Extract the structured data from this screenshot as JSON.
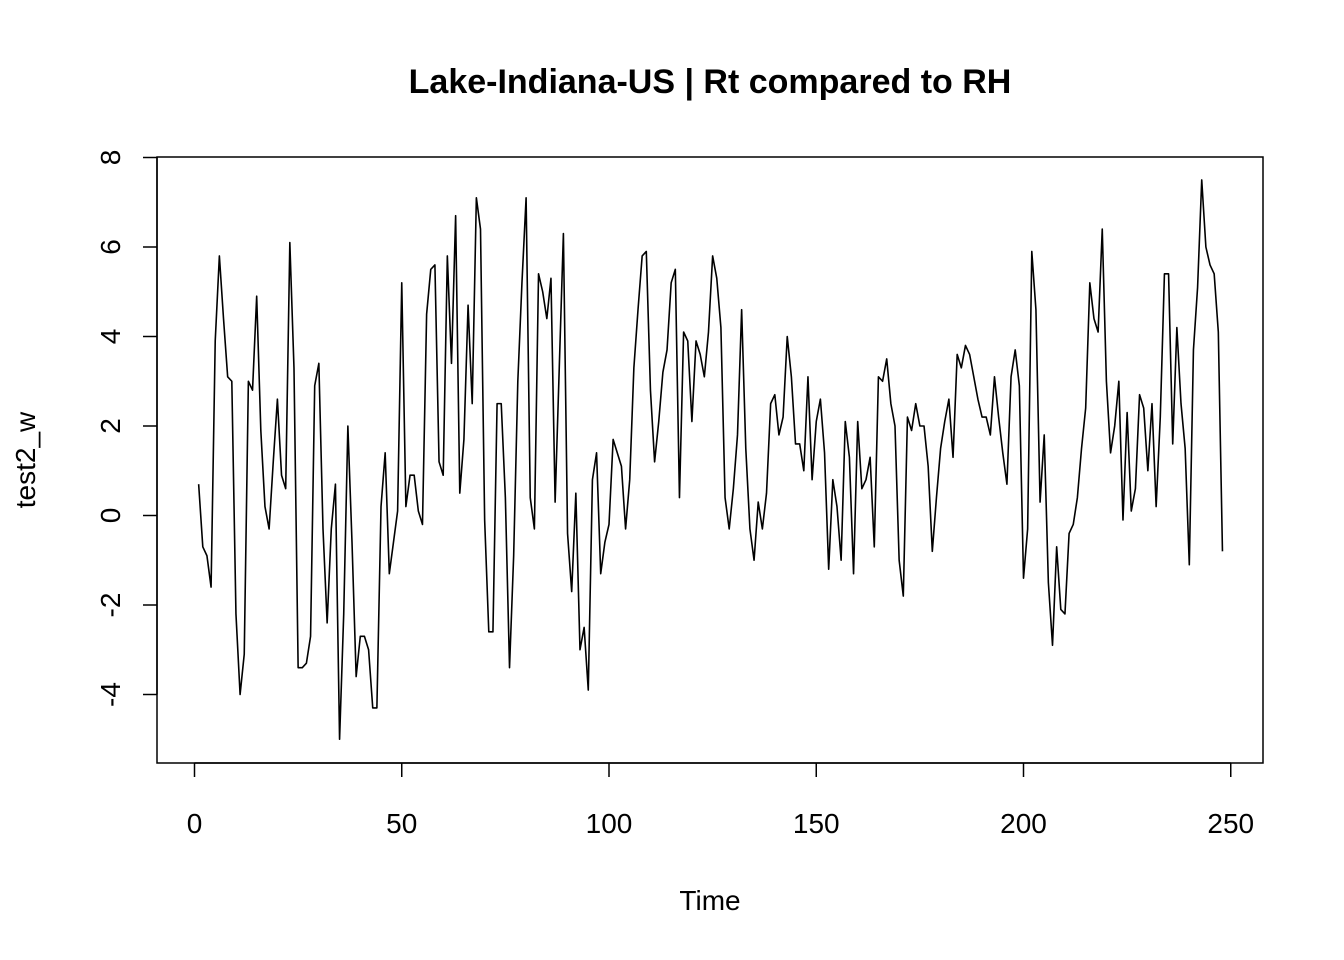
{
  "chart_data": {
    "type": "line",
    "title": "Lake-Indiana-US | Rt compared to RH",
    "xlabel": "Time",
    "ylabel": "test2_w",
    "xlim": [
      0,
      250
    ],
    "ylim": [
      -5,
      8
    ],
    "x_ticks": [
      0,
      50,
      100,
      150,
      200,
      250
    ],
    "y_ticks": [
      -4,
      -2,
      0,
      2,
      4,
      6,
      8
    ],
    "grid": false,
    "series": [
      {
        "color": "#000000",
        "x_start": 1,
        "values": [
          0.7,
          -0.7,
          -0.9,
          -1.6,
          3.9,
          5.8,
          4.4,
          3.1,
          3.0,
          -2.2,
          -4.0,
          -3.1,
          3.0,
          2.8,
          4.9,
          1.9,
          0.2,
          -0.3,
          1.2,
          2.6,
          0.9,
          0.6,
          6.1,
          3.3,
          -3.4,
          -3.4,
          -3.3,
          -2.7,
          2.9,
          3.4,
          -0.3,
          -2.4,
          -0.3,
          0.7,
          -5.0,
          -2.2,
          2.0,
          -0.6,
          -3.6,
          -2.7,
          -2.7,
          -3.0,
          -4.3,
          -4.3,
          0.2,
          1.4,
          -1.3,
          -0.6,
          0.1,
          5.2,
          0.2,
          0.9,
          0.9,
          0.1,
          -0.2,
          4.5,
          5.5,
          5.6,
          1.2,
          0.9,
          5.8,
          3.4,
          6.7,
          0.5,
          1.7,
          4.7,
          2.5,
          7.1,
          6.4,
          -0.1,
          -2.6,
          -2.6,
          2.5,
          2.5,
          0.4,
          -3.4,
          -0.9,
          3.0,
          5.2,
          7.1,
          0.4,
          -0.3,
          5.4,
          5.0,
          4.4,
          5.3,
          0.3,
          3.3,
          6.3,
          -0.4,
          -1.7,
          0.5,
          -3.0,
          -2.5,
          -3.9,
          0.8,
          1.4,
          -1.3,
          -0.6,
          -0.2,
          1.7,
          1.4,
          1.1,
          -0.3,
          0.8,
          3.3,
          4.6,
          5.8,
          5.9,
          2.8,
          1.2,
          2.1,
          3.2,
          3.7,
          5.2,
          5.5,
          0.4,
          4.1,
          3.9,
          2.1,
          3.9,
          3.6,
          3.1,
          4.1,
          5.8,
          5.3,
          4.2,
          0.4,
          -0.3,
          0.6,
          1.8,
          4.6,
          1.5,
          -0.3,
          -1.0,
          0.3,
          -0.3,
          0.5,
          2.5,
          2.7,
          1.8,
          2.2,
          4.0,
          3.1,
          1.6,
          1.6,
          1.0,
          3.1,
          0.8,
          2.1,
          2.6,
          1.4,
          -1.2,
          0.8,
          0.2,
          -1.0,
          2.1,
          1.3,
          -1.3,
          2.1,
          0.6,
          0.8,
          1.3,
          -0.7,
          3.1,
          3.0,
          3.5,
          2.5,
          2.0,
          -1.0,
          -1.8,
          2.2,
          1.9,
          2.5,
          2.0,
          2.0,
          1.1,
          -0.8,
          0.4,
          1.5,
          2.1,
          2.6,
          1.3,
          3.6,
          3.3,
          3.8,
          3.6,
          3.1,
          2.6,
          2.2,
          2.2,
          1.8,
          3.1,
          2.2,
          1.4,
          0.7,
          3.1,
          3.7,
          2.9,
          -1.4,
          -0.3,
          5.9,
          4.6,
          0.3,
          1.8,
          -1.5,
          -2.9,
          -0.7,
          -2.1,
          -2.2,
          -0.4,
          -0.2,
          0.4,
          1.5,
          2.4,
          5.2,
          4.4,
          4.1,
          6.4,
          3.0,
          1.4,
          2.0,
          3.0,
          -0.1,
          2.3,
          0.1,
          0.6,
          2.7,
          2.4,
          1.0,
          2.5,
          0.2,
          2.2,
          5.4,
          5.4,
          1.6,
          4.2,
          2.5,
          1.5,
          -1.1,
          3.7,
          5.1,
          7.5,
          6.0,
          5.6,
          5.4,
          4.1,
          -0.8
        ]
      }
    ]
  }
}
